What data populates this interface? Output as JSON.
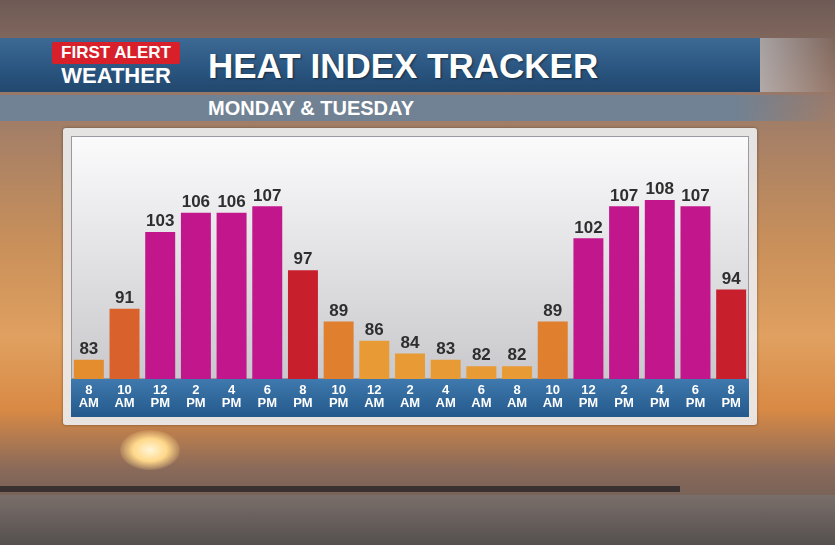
{
  "logo": {
    "line1": "FIRST ALERT",
    "line2": "WEATHER"
  },
  "chart_data": {
    "type": "bar",
    "title": "HEAT INDEX TRACKER",
    "subtitle": "MONDAY & TUESDAY",
    "categories": [
      "8 AM",
      "10 AM",
      "12 PM",
      "2 PM",
      "4 PM",
      "6 PM",
      "8 PM",
      "10 PM",
      "12 AM",
      "2 AM",
      "4 AM",
      "6 AM",
      "8 AM",
      "10 AM",
      "12 PM",
      "2 PM",
      "4 PM",
      "6 PM",
      "8 PM"
    ],
    "values": [
      83,
      91,
      103,
      106,
      106,
      107,
      97,
      89,
      86,
      84,
      83,
      82,
      82,
      89,
      102,
      107,
      108,
      107,
      94
    ],
    "colors": [
      "#e38d2f",
      "#d8612c",
      "#c2168c",
      "#c2168c",
      "#c2168c",
      "#c2168c",
      "#c7202c",
      "#e07f2d",
      "#e89a35",
      "#e89a35",
      "#e89a35",
      "#e89a35",
      "#e89a35",
      "#e07f2d",
      "#c2168c",
      "#c2168c",
      "#c2168c",
      "#c2168c",
      "#c7202c"
    ],
    "ylim": [
      80,
      118
    ],
    "data_labels": true,
    "tick_labels": "x",
    "grid": false
  }
}
